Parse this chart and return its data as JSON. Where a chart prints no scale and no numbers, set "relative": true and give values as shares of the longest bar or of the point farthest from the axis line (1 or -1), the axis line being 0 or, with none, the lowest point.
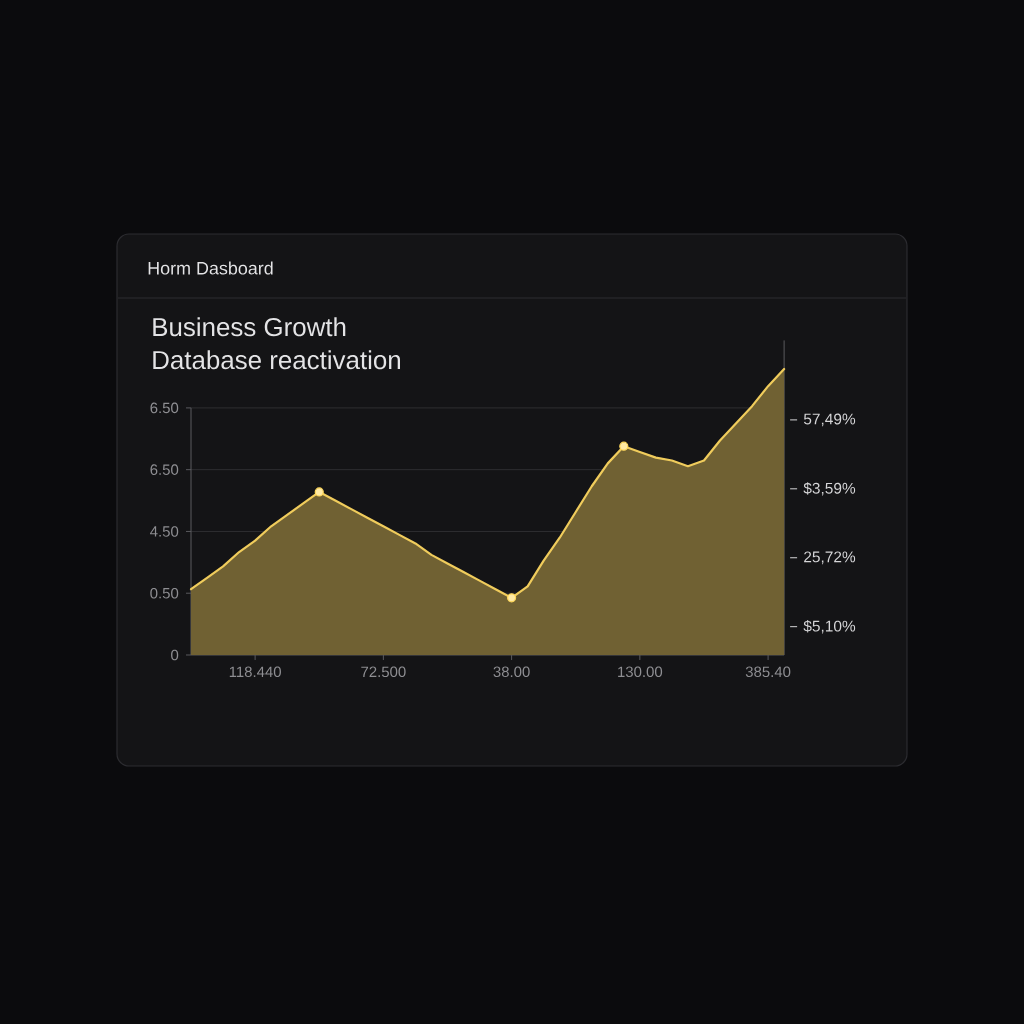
{
  "chart_data": {
    "type": "area",
    "title": "Business Growth",
    "subtitle": "Database reactivation",
    "annotations": [
      "Horm Dasboard",
      "6.50",
      "6.50",
      "4.50",
      "0.50",
      "0",
      "57,49%",
      "$3,59%",
      "25,72%",
      "$5,10%"
    ],
    "categories": [
      null,
      null,
      null,
      null,
      "118.440",
      null,
      null,
      null,
      null,
      null,
      null,
      null,
      "72.500",
      null,
      null,
      null,
      null,
      null,
      null,
      null,
      "38.00",
      null,
      null,
      null,
      null,
      null,
      null,
      null,
      "130.00",
      null,
      null,
      null,
      null,
      null,
      null,
      null,
      "385.40",
      null
    ],
    "relative": true,
    "grid": "y",
    "series": [
      {
        "color": "#f0cc5c",
        "values": [
          0.23,
          0.27,
          0.31,
          0.36,
          0.4,
          0.45,
          0.49,
          0.53,
          0.57,
          0.54,
          0.51,
          0.48,
          0.45,
          0.42,
          0.39,
          0.35,
          0.32,
          0.29,
          0.26,
          0.23,
          0.2,
          0.24,
          0.33,
          0.41,
          0.5,
          0.59,
          0.67,
          0.73,
          0.71,
          0.69,
          0.68,
          0.66,
          0.68,
          0.75,
          0.81,
          0.87,
          0.94,
          1.0
        ]
      },
      {
        "type": "scatter",
        "color": "#ffd85a",
        "marker": "circle",
        "values": [
          null,
          null,
          null,
          null,
          null,
          null,
          null,
          null,
          0.57,
          null,
          null,
          null,
          null,
          null,
          null,
          null,
          null,
          null,
          null,
          null,
          0.2,
          null,
          null,
          null,
          null,
          null,
          null,
          0.73,
          null,
          null,
          null,
          null,
          null,
          null,
          null,
          null,
          null,
          null
        ]
      }
    ]
  }
}
